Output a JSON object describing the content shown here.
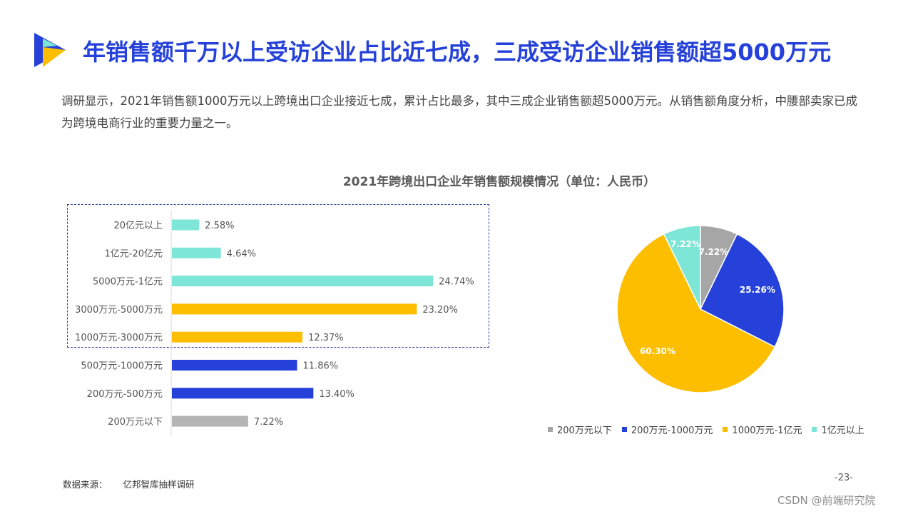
{
  "header": {
    "title": "年销售额千万以上受访企业占比近七成，三成受访企业销售额超5000万元",
    "description": "调研显示，2021年销售额1000万元以上跨境出口企业接近七成，累计占比最多，其中三成企业销售额超5000万元。从销售额角度分析，中腰部卖家已成为跨境电商行业的重要力量之一。"
  },
  "colors": {
    "accent": "#2541d9",
    "teal": "#7de6d6",
    "gold": "#fdbe00",
    "blue": "#2541d9",
    "gray": "#b4b4b4",
    "pie_gray": "#a6a6a6"
  },
  "chart_title": "2021年跨境出口企业年销售额规模情况（单位：人民币）",
  "chart_data": [
    {
      "type": "bar",
      "orientation": "horizontal",
      "categories": [
        "20亿元以上",
        "1亿元-20亿元",
        "5000万元-1亿元",
        "3000万元-5000万元",
        "1000万元-3000万元",
        "500万元-1000万元",
        "200万元-500万元",
        "200万元以下"
      ],
      "values": [
        2.58,
        4.64,
        24.74,
        23.2,
        12.37,
        11.86,
        13.4,
        7.22
      ],
      "labels": [
        "2.58%",
        "4.64%",
        "24.74%",
        "23.20%",
        "12.37%",
        "11.86%",
        "13.40%",
        "7.22%"
      ],
      "bar_colors": [
        "#7de6d6",
        "#7de6d6",
        "#7de6d6",
        "#fdbe00",
        "#fdbe00",
        "#2541d9",
        "#2541d9",
        "#b4b4b4"
      ],
      "xlim": [
        0,
        27
      ],
      "highlight": "dashed box around the top five categories"
    },
    {
      "type": "pie",
      "categories": [
        "200万元以下",
        "200万元-1000万元",
        "1000万元-1亿元",
        "1亿元以上"
      ],
      "values": [
        7.22,
        25.26,
        60.3,
        7.22
      ],
      "labels": [
        "7.22%",
        "25.26%",
        "60.30%",
        "7.22%"
      ],
      "colors": [
        "#a6a6a6",
        "#2541d9",
        "#fdbe00",
        "#7de6d6"
      ],
      "legend": "bottom"
    }
  ],
  "footer": {
    "source_label": "数据来源：",
    "source_value": "亿邦智库抽样调研",
    "page_number": "-23-",
    "watermark": "CSDN @前端研究院"
  }
}
